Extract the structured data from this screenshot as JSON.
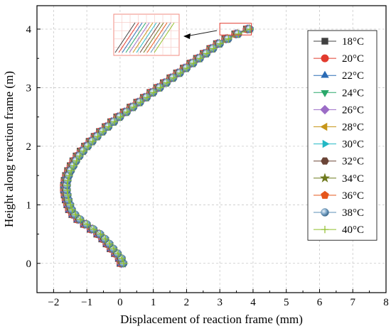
{
  "chart_data": {
    "type": "scatter",
    "title": "",
    "xlabel": "Displacement of reaction frame (mm)",
    "ylabel": "Height along reaction frame (m)",
    "xlim": [
      -2.5,
      8
    ],
    "ylim": [
      -0.5,
      4.4
    ],
    "xticks": [
      -2,
      -1,
      0,
      1,
      2,
      3,
      4,
      5,
      6,
      7,
      8
    ],
    "yticks": [
      0,
      1,
      2,
      3,
      4
    ],
    "grid": true,
    "legend_position": "right",
    "base_profile": {
      "y": [
        0,
        0.083,
        0.167,
        0.25,
        0.333,
        0.417,
        0.5,
        0.583,
        0.667,
        0.75,
        0.833,
        0.917,
        1.0,
        1.083,
        1.167,
        1.25,
        1.333,
        1.417,
        1.5,
        1.583,
        1.667,
        1.75,
        1.833,
        1.917,
        2.0,
        2.083,
        2.167,
        2.25,
        2.333,
        2.417,
        2.5,
        2.583,
        2.667,
        2.75,
        2.833,
        2.917,
        3.0,
        3.083,
        3.167,
        3.25,
        3.333,
        3.417,
        3.5,
        3.583,
        3.667,
        3.75,
        3.833,
        3.917,
        4.0
      ],
      "x": [
        0.0,
        -0.05,
        -0.17,
        -0.3,
        -0.42,
        -0.55,
        -0.7,
        -0.9,
        -1.1,
        -1.3,
        -1.45,
        -1.55,
        -1.6,
        -1.65,
        -1.68,
        -1.7,
        -1.7,
        -1.68,
        -1.64,
        -1.58,
        -1.5,
        -1.42,
        -1.32,
        -1.2,
        -1.07,
        -0.93,
        -0.78,
        -0.62,
        -0.45,
        -0.28,
        -0.1,
        0.1,
        0.3,
        0.5,
        0.7,
        0.9,
        1.1,
        1.3,
        1.5,
        1.7,
        1.9,
        2.1,
        2.3,
        2.5,
        2.7,
        2.9,
        3.15,
        3.45,
        3.8
      ]
    },
    "series": [
      {
        "name": "18°C",
        "marker": "square",
        "color": "#404040",
        "offset": 0.0
      },
      {
        "name": "20°C",
        "marker": "circle",
        "color": "#e23b2e",
        "offset": 0.01
      },
      {
        "name": "22°C",
        "marker": "triangle-up",
        "color": "#2a6bb5",
        "offset": 0.02
      },
      {
        "name": "24°C",
        "marker": "triangle-down",
        "color": "#2aa86a",
        "offset": 0.03
      },
      {
        "name": "26°C",
        "marker": "diamond",
        "color": "#9b6cc6",
        "offset": 0.04
      },
      {
        "name": "28°C",
        "marker": "triangle-left",
        "color": "#c7961a",
        "offset": 0.05
      },
      {
        "name": "30°C",
        "marker": "triangle-right",
        "color": "#22b8c4",
        "offset": 0.06
      },
      {
        "name": "32°C",
        "marker": "hexagon",
        "color": "#6b4537",
        "offset": 0.07
      },
      {
        "name": "34°C",
        "marker": "star",
        "color": "#6f7a1e",
        "offset": 0.08
      },
      {
        "name": "36°C",
        "marker": "pentagon",
        "color": "#e5561b",
        "offset": 0.09
      },
      {
        "name": "38°C",
        "marker": "sphere",
        "color": "#5b8fb7",
        "offset": 0.1
      },
      {
        "name": "40°C",
        "marker": "plus",
        "color": "#8fbf2a",
        "offset": 0.11
      }
    ],
    "zoom_box": {
      "x": [
        3.0,
        3.95
      ],
      "y": [
        3.9,
        4.1
      ]
    }
  }
}
